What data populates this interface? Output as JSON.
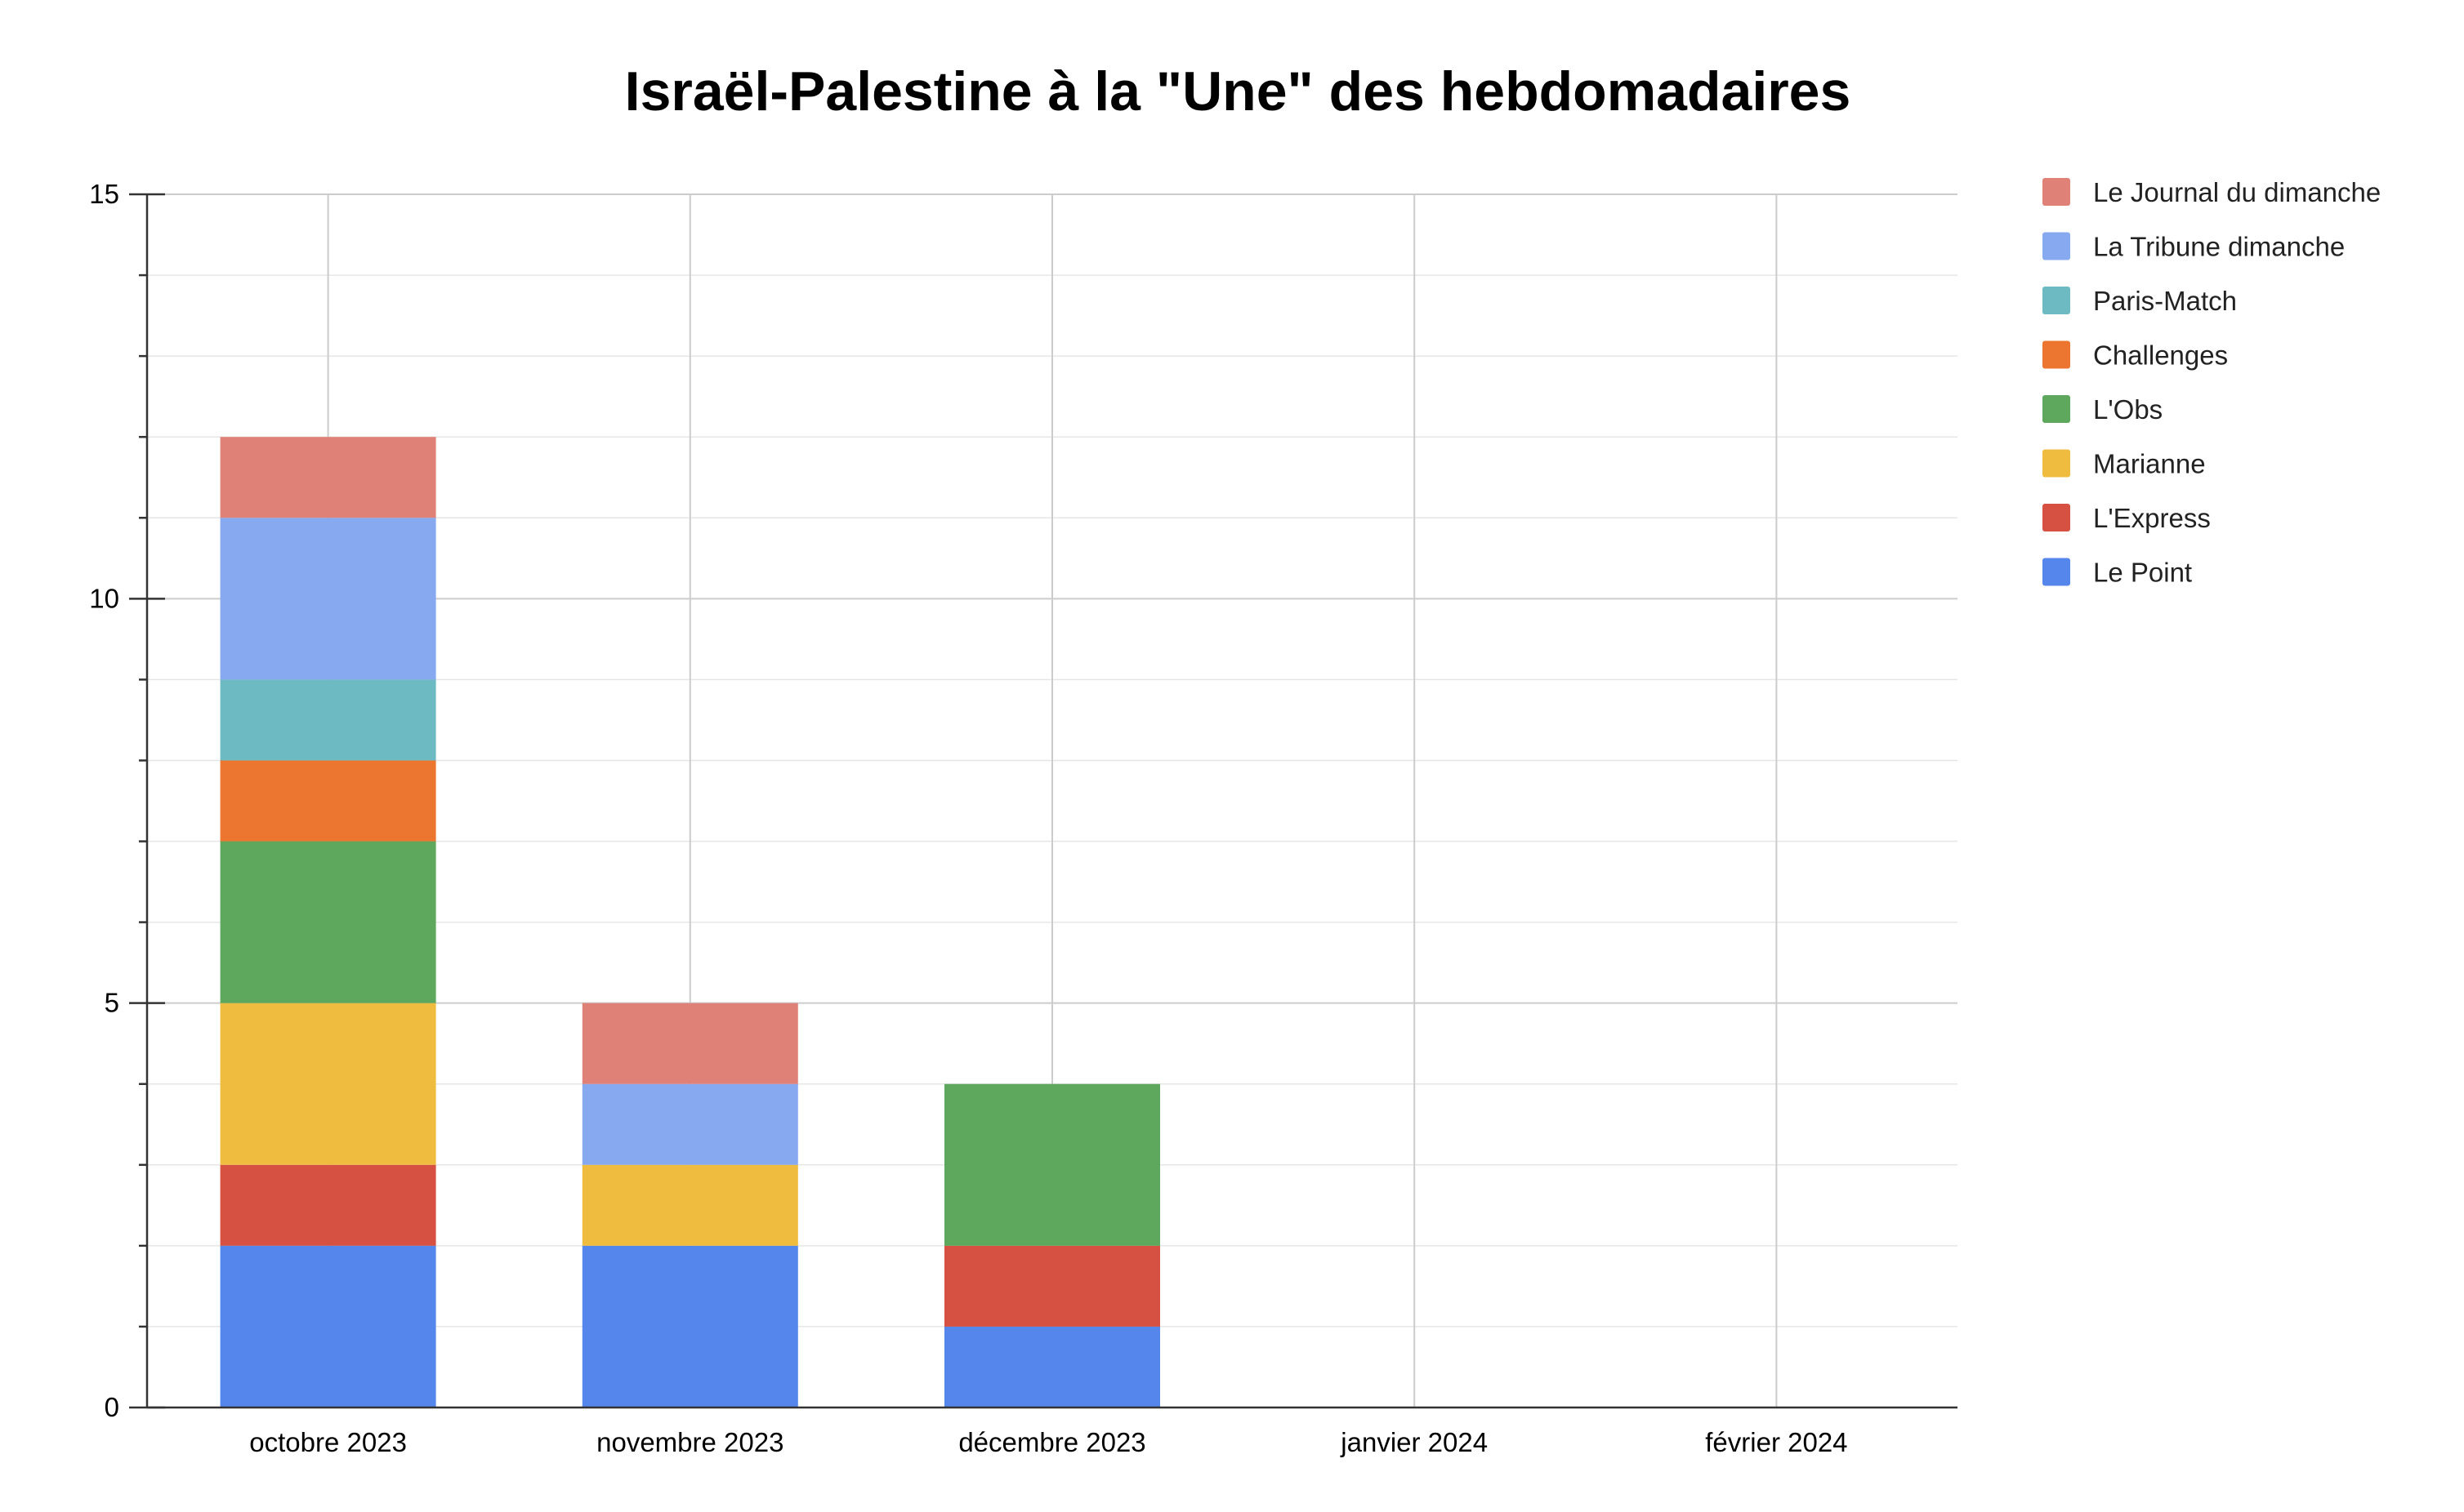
{
  "chart_data": {
    "type": "bar",
    "stacked": true,
    "title": "Israël-Palestine à la \"Une\" des hebdomadaires",
    "xlabel": "",
    "ylabel": "",
    "ylim": [
      0,
      15
    ],
    "yticks": [
      "0",
      "5",
      "10",
      "15"
    ],
    "grid": true,
    "legend_position": "right",
    "categories": [
      "octobre 2023",
      "novembre 2023",
      "décembre 2023",
      "janvier 2024",
      "février 2024"
    ],
    "series": [
      {
        "name": "Le Point",
        "color": "#5586EB",
        "values": [
          2,
          2,
          1,
          0,
          0
        ]
      },
      {
        "name": "L'Express",
        "color": "#D65142",
        "values": [
          1,
          0,
          1,
          0,
          0
        ]
      },
      {
        "name": "Marianne",
        "color": "#F0BC40",
        "values": [
          2,
          1,
          0,
          0,
          0
        ]
      },
      {
        "name": "L'Obs",
        "color": "#5DA85D",
        "values": [
          2,
          0,
          2,
          0,
          0
        ]
      },
      {
        "name": "Challenges",
        "color": "#EC7630",
        "values": [
          1,
          0,
          0,
          0,
          0
        ]
      },
      {
        "name": "Paris-Match",
        "color": "#6DBAC2",
        "values": [
          1,
          0,
          0,
          0,
          0
        ]
      },
      {
        "name": "La Tribune dimanche",
        "color": "#86A9F0",
        "values": [
          2,
          1,
          0,
          0,
          0
        ]
      },
      {
        "name": "Le Journal du dimanche",
        "color": "#E08177",
        "values": [
          1,
          1,
          0,
          0,
          0
        ]
      }
    ]
  }
}
